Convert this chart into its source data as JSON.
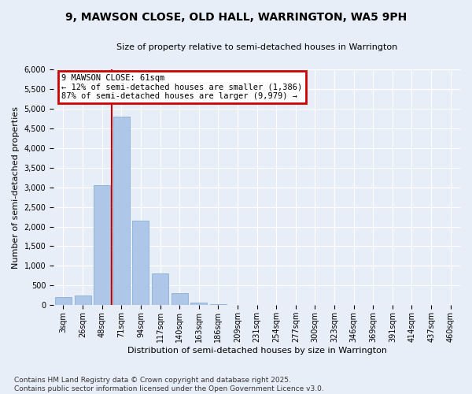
{
  "title": "9, MAWSON CLOSE, OLD HALL, WARRINGTON, WA5 9PH",
  "subtitle": "Size of property relative to semi-detached houses in Warrington",
  "xlabel": "Distribution of semi-detached houses by size in Warrington",
  "ylabel": "Number of semi-detached properties",
  "footer_line1": "Contains HM Land Registry data © Crown copyright and database right 2025.",
  "footer_line2": "Contains public sector information licensed under the Open Government Licence v3.0.",
  "annotation_title": "9 MAWSON CLOSE: 61sqm",
  "annotation_line1": "← 12% of semi-detached houses are smaller (1,386)",
  "annotation_line2": "87% of semi-detached houses are larger (9,979) →",
  "bar_categories": [
    "3sqm",
    "26sqm",
    "48sqm",
    "71sqm",
    "94sqm",
    "117sqm",
    "140sqm",
    "163sqm",
    "186sqm",
    "209sqm",
    "231sqm",
    "254sqm",
    "277sqm",
    "300sqm",
    "323sqm",
    "346sqm",
    "369sqm",
    "391sqm",
    "414sqm",
    "437sqm",
    "460sqm"
  ],
  "bar_values": [
    200,
    250,
    3050,
    4800,
    2150,
    800,
    310,
    60,
    30,
    15,
    10,
    5,
    3,
    3,
    2,
    2,
    1,
    1,
    1,
    1,
    1
  ],
  "bar_color": "#aec6e8",
  "bar_edgecolor": "#7aa8d0",
  "vline_color": "#cc0000",
  "annotation_box_facecolor": "#ffffff",
  "annotation_box_edgecolor": "#cc0000",
  "background_color": "#e8eef8",
  "ylim": [
    0,
    6000
  ],
  "yticks": [
    0,
    500,
    1000,
    1500,
    2000,
    2500,
    3000,
    3500,
    4000,
    4500,
    5000,
    5500,
    6000
  ],
  "vline_x": 2.5,
  "grid_color": "#ffffff",
  "title_fontsize": 10,
  "subtitle_fontsize": 8,
  "ylabel_fontsize": 8,
  "xlabel_fontsize": 8,
  "tick_fontsize": 7,
  "annotation_fontsize": 7.5,
  "footer_fontsize": 6.5
}
